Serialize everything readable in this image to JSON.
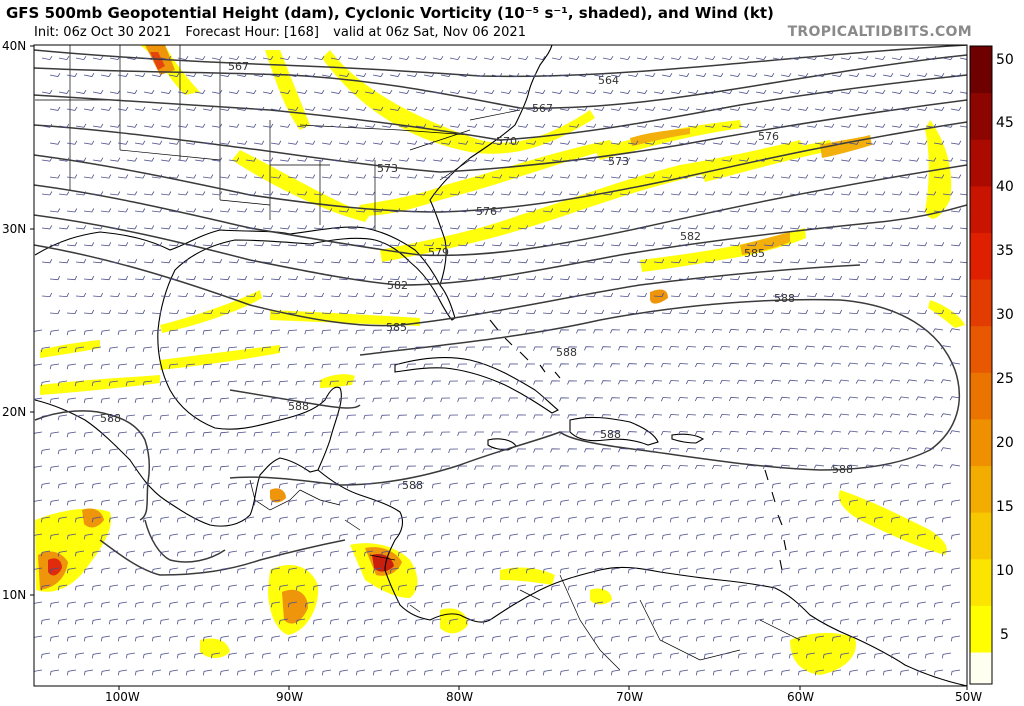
{
  "header": {
    "title": "GFS 500mb Geopotential Height (dam), Cyclonic Vorticity (10⁻⁵ s⁻¹, shaded), and Wind (kt)",
    "init": "Init: 06z Oct 30 2021",
    "forecast_hour": "Forecast Hour: [168]",
    "valid": "valid at 06z Sat, Nov 06 2021",
    "brand": "TROPICALTIDBITS.COM"
  },
  "axes": {
    "lat_labels": [
      "40N",
      "30N",
      "20N",
      "10N"
    ],
    "lon_labels": [
      "100W",
      "90W",
      "80W",
      "70W",
      "60W",
      "50W"
    ]
  },
  "contours": {
    "labels": [
      "567",
      "564",
      "567",
      "570",
      "573",
      "573",
      "576",
      "576",
      "579",
      "582",
      "582",
      "585",
      "585",
      "588",
      "588",
      "588",
      "588",
      "588",
      "588",
      "588"
    ]
  },
  "colorbar": {
    "ticks": [
      "50",
      "45",
      "40",
      "35",
      "30",
      "25",
      "20",
      "15",
      "10",
      "5"
    ],
    "colors": [
      "#ffff00",
      "#fbe400",
      "#f7c800",
      "#f3ac00",
      "#ef9000",
      "#eb7400",
      "#e75800",
      "#e33c00",
      "#df2000",
      "#c81400",
      "#aa0a00",
      "#8c0500",
      "#6e0000"
    ]
  }
}
